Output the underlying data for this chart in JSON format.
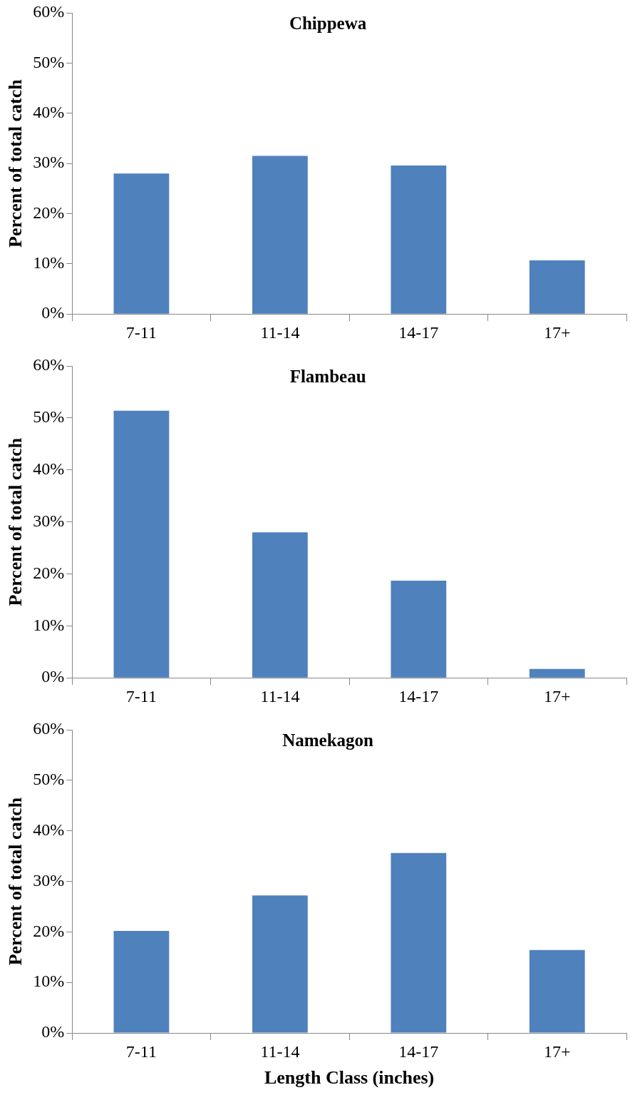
{
  "chart_data": [
    {
      "type": "bar",
      "title": "Chippewa",
      "ylabel": "Percent of total catch",
      "categories": [
        "7-11",
        "11-14",
        "14-17",
        "17+"
      ],
      "values": [
        28.0,
        31.5,
        29.6,
        10.7
      ],
      "color": "#4f81bd",
      "ylim": [
        0,
        60
      ],
      "yticks": [
        {
          "value": 0,
          "label": "0%"
        },
        {
          "value": 10,
          "label": "10%"
        },
        {
          "value": 20,
          "label": "20%"
        },
        {
          "value": 30,
          "label": "30%"
        },
        {
          "value": 40,
          "label": "40%"
        },
        {
          "value": 50,
          "label": "50%"
        },
        {
          "value": 60,
          "label": "60%"
        }
      ],
      "grid": false,
      "legend": false
    },
    {
      "type": "bar",
      "title": "Flambeau",
      "ylabel": "Percent of total catch",
      "categories": [
        "7-11",
        "11-14",
        "14-17",
        "17+"
      ],
      "values": [
        51.4,
        28.0,
        18.7,
        1.7
      ],
      "color": "#4f81bd",
      "ylim": [
        0,
        60
      ],
      "yticks": [
        {
          "value": 0,
          "label": "0%"
        },
        {
          "value": 10,
          "label": "10%"
        },
        {
          "value": 20,
          "label": "20%"
        },
        {
          "value": 30,
          "label": "30%"
        },
        {
          "value": 40,
          "label": "40%"
        },
        {
          "value": 50,
          "label": "50%"
        },
        {
          "value": 60,
          "label": "60%"
        }
      ],
      "grid": false,
      "legend": false
    },
    {
      "type": "bar",
      "title": "Namekagon",
      "xlabel": "Length Class (inches)",
      "ylabel": "Percent of total catch",
      "categories": [
        "7-11",
        "11-14",
        "14-17",
        "17+"
      ],
      "values": [
        20.2,
        27.2,
        35.6,
        16.4
      ],
      "color": "#4f81bd",
      "ylim": [
        0,
        60
      ],
      "yticks": [
        {
          "value": 0,
          "label": "0%"
        },
        {
          "value": 10,
          "label": "10%"
        },
        {
          "value": 20,
          "label": "20%"
        },
        {
          "value": 30,
          "label": "30%"
        },
        {
          "value": 40,
          "label": "40%"
        },
        {
          "value": 50,
          "label": "50%"
        },
        {
          "value": 60,
          "label": "60%"
        }
      ],
      "grid": false,
      "legend": false
    }
  ]
}
